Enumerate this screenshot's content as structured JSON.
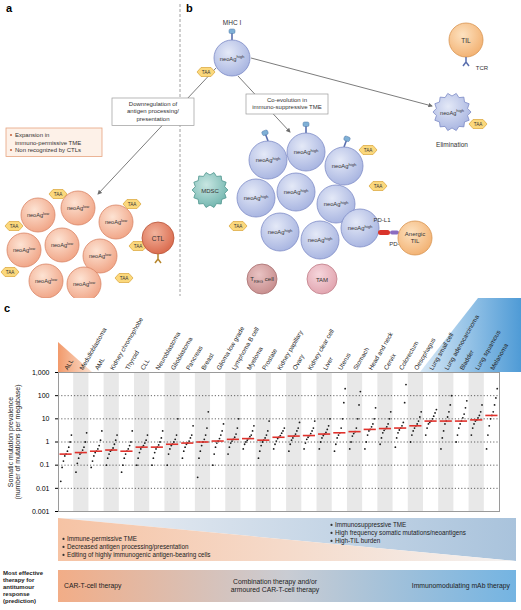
{
  "diagram": {
    "antigen": "TAA",
    "link": "Downregulation of antigen processing/presentation",
    "panel_a": {
      "label": "a",
      "cells": {
        "base": "neoAg",
        "sup": "low"
      },
      "note": [
        "Expansion in immuno-permissive TME",
        "Non recognized by CTLs"
      ],
      "ctl": "CTL"
    },
    "panel_b": {
      "label": "b",
      "cells": {
        "base": "neoAg",
        "sup": "high"
      },
      "mhc": "MHC I",
      "til": "TIL",
      "tcr": "TCR",
      "elimination": "Elimination",
      "coevolution": "Co-evolution in immuno-suppressive TME",
      "mdsc": "MDSC",
      "pdl1": "PD-L1",
      "pd1": "PD-1",
      "anergic": "Anergic TIL",
      "treg": {
        "base": "T",
        "sub": "REG",
        "suffix": " cell"
      },
      "tam": "TAM"
    },
    "bottom": {
      "left": [
        "Immune-permissive TME",
        "Decreased antigen processing/presentation",
        "Editing of highly immunogenic antigen-bearing cells"
      ],
      "right": [
        "Immunosuppressive TME",
        "High frequency somatic mutations/neoantigens",
        "High-TIL burden"
      ],
      "therapy_heading": "Most effective therapy for antitumour response (prediction)",
      "therapies": [
        "CAR-T-cell therapy",
        "Combination therapy and/or armoured CAR-T-cell therapy",
        "Immunomodulating mAb therapy"
      ]
    }
  },
  "chart_data": {
    "type": "scatter",
    "panel_label": "c",
    "ylabel": "Somatic mutation prevalence (number of mutations per megabase)",
    "log": "y",
    "grid": true,
    "marker": "dot",
    "color": "#1a1a1a",
    "ylim": [
      0.001,
      1000
    ],
    "yticks": [
      0.001,
      0.01,
      0.1,
      1,
      10,
      100,
      {
        "value": 1000,
        "label": "1,000"
      }
    ],
    "categories": [
      "ALL",
      "Medulloblastoma",
      "AML",
      "Kidney chromophobe",
      "Thyroid",
      "CLL",
      "Neuroblastoma",
      "Glioblastoma",
      "Pancreas",
      "Breast",
      "Glioma low grade",
      "Lymphoma B cell",
      "Myeloma",
      "Prostate",
      "Kidney papillary",
      "Ovary",
      "Kidney clear cell",
      "Liver",
      "Uterus",
      "Stomach",
      "Head and neck",
      "Cervix",
      "Colorectum",
      "Oesophagus",
      "Lung small cell",
      "Lung adenocarcinoma",
      "Bladder",
      "Lung squamous",
      "Melanoma"
    ],
    "medians": [
      0.3,
      0.35,
      0.4,
      0.45,
      0.4,
      0.6,
      0.6,
      0.8,
      0.9,
      1.0,
      1.1,
      1.3,
      1.4,
      1.2,
      1.6,
      1.8,
      1.9,
      2.2,
      2.5,
      2.8,
      3.5,
      3.8,
      4,
      5,
      8,
      8,
      8,
      9,
      14
    ],
    "values": [
      [
        0.02,
        0.08,
        0.15,
        0.25,
        0.3,
        0.4,
        0.6,
        1.0,
        2
      ],
      [
        0.05,
        0.12,
        0.2,
        0.3,
        0.35,
        0.45,
        0.6,
        1,
        2.5
      ],
      [
        0.08,
        0.15,
        0.25,
        0.35,
        0.4,
        0.5,
        0.7,
        1.2,
        3
      ],
      [
        0.1,
        0.2,
        0.3,
        0.4,
        0.45,
        0.55,
        0.8,
        1.2,
        2
      ],
      [
        0.05,
        0.1,
        0.2,
        0.3,
        0.4,
        0.5,
        0.7,
        1,
        3
      ],
      [
        0.1,
        0.2,
        0.35,
        0.5,
        0.6,
        0.7,
        0.9,
        1.2,
        2
      ],
      [
        0.1,
        0.2,
        0.35,
        0.5,
        0.6,
        0.75,
        1,
        1.5,
        3
      ],
      [
        0.1,
        0.3,
        0.5,
        0.7,
        0.8,
        1,
        1.3,
        2,
        10
      ],
      [
        0.2,
        0.4,
        0.6,
        0.8,
        0.9,
        1.1,
        1.5,
        2,
        5
      ],
      [
        0.03,
        0.2,
        0.4,
        0.7,
        1,
        1.3,
        2,
        4,
        20
      ],
      [
        0.1,
        0.3,
        0.6,
        0.9,
        1.1,
        1.4,
        2,
        3,
        6
      ],
      [
        0.3,
        0.6,
        0.9,
        1.1,
        1.3,
        1.6,
        2.2,
        4,
        10
      ],
      [
        0.5,
        0.8,
        1,
        1.2,
        1.4,
        1.7,
        2,
        3,
        5
      ],
      [
        0.2,
        0.4,
        0.7,
        1,
        1.2,
        1.5,
        2,
        3,
        8
      ],
      [
        0.5,
        0.8,
        1.1,
        1.4,
        1.6,
        1.9,
        2.4,
        3,
        4
      ],
      [
        0.4,
        0.8,
        1.2,
        1.5,
        1.8,
        2.2,
        3,
        4,
        7
      ],
      [
        0.5,
        0.9,
        1.3,
        1.6,
        1.9,
        2.3,
        3,
        4,
        8
      ],
      [
        0.5,
        1,
        1.5,
        1.9,
        2.2,
        2.6,
        3.5,
        5,
        10
      ],
      [
        0.4,
        0.8,
        1.5,
        2,
        2.5,
        4,
        10,
        50,
        200
      ],
      [
        0.5,
        1,
        1.8,
        2.3,
        2.8,
        4,
        10,
        40,
        150
      ],
      [
        0.5,
        1,
        2,
        3,
        3.5,
        4.5,
        6,
        10,
        30
      ],
      [
        0.8,
        1.5,
        2.5,
        3.2,
        3.8,
        4.5,
        6,
        10,
        20
      ],
      [
        0.6,
        1.5,
        2.5,
        3.3,
        4,
        5,
        7,
        50,
        300
      ],
      [
        1,
        2,
        3,
        4,
        5,
        6,
        8,
        12,
        20
      ],
      [
        2,
        4,
        6,
        7,
        8,
        10,
        13,
        18,
        25
      ],
      [
        0.5,
        1.5,
        3,
        6,
        8,
        12,
        20,
        40,
        100
      ],
      [
        1,
        2,
        4,
        6,
        8,
        11,
        16,
        30,
        60
      ],
      [
        2,
        4,
        6,
        8,
        9,
        11,
        14,
        20,
        40
      ],
      [
        0.5,
        2,
        5,
        10,
        14,
        20,
        40,
        80,
        200
      ]
    ]
  }
}
